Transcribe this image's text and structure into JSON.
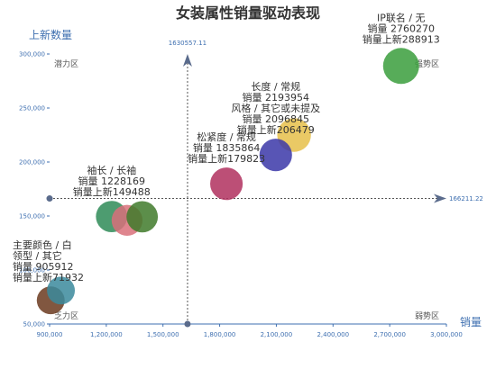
{
  "chart_data": {
    "type": "scatter",
    "title": "女装属性销量驱动表现",
    "xlabel": "销量",
    "ylabel": "上新数量",
    "xlim": [
      900000,
      3000000
    ],
    "ylim": [
      50000,
      300000
    ],
    "x_ticks": [
      "900,000",
      "1,200,000",
      "1,500,000",
      "1,800,000",
      "2,100,000",
      "2,400,000",
      "2,700,000",
      "3,000,000"
    ],
    "x_tick_values": [
      900000,
      1200000,
      1500000,
      1800000,
      2100000,
      2400000,
      2700000,
      3000000
    ],
    "y_ticks": [
      "50,000",
      "100,000",
      "150,000",
      "200,000",
      "250,000",
      "300,000"
    ],
    "y_tick_values": [
      50000,
      100000,
      150000,
      200000,
      250000,
      300000
    ],
    "ref_lines": {
      "vertical_x": 1630000,
      "vertical_label": "1630557.11",
      "horizontal_y": 166211,
      "horizontal_label": "166211.22"
    },
    "quadrants": {
      "top_left": "潜力区",
      "top_right": "强势区",
      "bottom_left": "乏力区",
      "bottom_right": "弱势区"
    },
    "points": [
      {
        "x": 2760270,
        "y": 288913,
        "color": "#3a9e3c",
        "size": 1.0,
        "label_lines": [
          "IP联名 / 无",
          "销量 2760270",
          "销量上新288913"
        ]
      },
      {
        "x": 2193954,
        "y": 225000,
        "color": "#e6c04a",
        "size": 0.9,
        "label_lines": []
      },
      {
        "x": 2096845,
        "y": 206479,
        "color": "#3b37a8",
        "size": 0.85,
        "label_lines": [
          "长度 / 常规",
          "销量 2193954",
          "风格 / 其它或未提及",
          "销量 2096845",
          "销量上新206479"
        ]
      },
      {
        "x": 1835864,
        "y": 179823,
        "color": "#b0305e",
        "size": 0.85,
        "label_lines": [
          "松紧度 / 常规",
          "销量 1835864",
          "销量上新179823"
        ]
      },
      {
        "x": 1228169,
        "y": 149488,
        "color": "#2e8b57",
        "size": 0.8,
        "label_lines": [
          "袖长 / 长袖",
          "销量 1228169",
          "销量上新149488"
        ]
      },
      {
        "x": 1310000,
        "y": 146000,
        "color": "#d9707a",
        "size": 0.78,
        "label_lines": []
      },
      {
        "x": 1390000,
        "y": 149270,
        "color": "#3f7a2a",
        "size": 0.8,
        "label_lines": []
      },
      {
        "x": 905912,
        "y": 71932,
        "color": "#6b3a1e",
        "size": 0.65,
        "label_lines": [
          "主要颜色 / 白",
          "领型 / 其它",
          "销量 905912",
          "销量上新71932"
        ]
      },
      {
        "x": 960000,
        "y": 81000,
        "color": "#3b8a9c",
        "size": 0.65,
        "label_lines": []
      }
    ]
  }
}
